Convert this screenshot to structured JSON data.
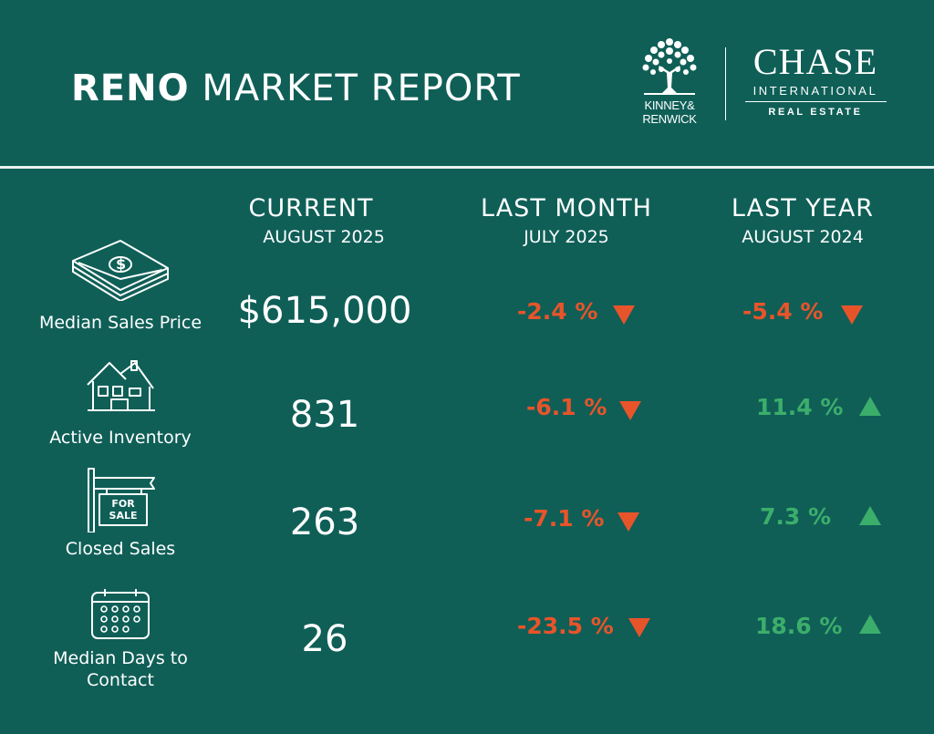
{
  "header": {
    "title_bold": "RENO",
    "title_rest": "MARKET REPORT",
    "logos": {
      "kinney_renwick_line1": "KINNEY&",
      "kinney_renwick_line2": "RENWICK",
      "chase_name": "CHASE",
      "chase_international": "INTERNATIONAL",
      "chase_real_estate": "REAL ESTATE"
    }
  },
  "columns": {
    "current": {
      "heading": "CURRENT",
      "period": "AUGUST 2025"
    },
    "last_month": {
      "heading": "LAST MONTH",
      "period": "JULY 2025"
    },
    "last_year": {
      "heading": "LAST YEAR",
      "period": "AUGUST 2024"
    }
  },
  "metrics": [
    {
      "label": "Median Sales Price",
      "icon": "money-stack-icon",
      "current": "$615,000",
      "last_month": {
        "value": "-2.4 %",
        "direction": "down"
      },
      "last_year": {
        "value": "-5.4 %",
        "direction": "down"
      }
    },
    {
      "label": "Active Inventory",
      "icon": "house-icon",
      "current": "831",
      "last_month": {
        "value": "-6.1 %",
        "direction": "down"
      },
      "last_year": {
        "value": "11.4 %",
        "direction": "up"
      }
    },
    {
      "label": "Closed Sales",
      "icon": "for-sale-sign-icon",
      "sign_line1": "FOR",
      "sign_line2": "SALE",
      "current": "263",
      "last_month": {
        "value": "-7.1 %",
        "direction": "down"
      },
      "last_year": {
        "value": "7.3 %",
        "direction": "up"
      }
    },
    {
      "label_line1": "Median Days to",
      "label_line2": "Contact",
      "icon": "calendar-icon",
      "current": "26",
      "last_month": {
        "value": "-23.5 %",
        "direction": "down"
      },
      "last_year": {
        "value": "18.6 %",
        "direction": "up"
      }
    }
  ],
  "colors": {
    "background": "#0f5f57",
    "decrease": "#e8542a",
    "increase": "#3cae6b",
    "text": "#ffffff"
  }
}
